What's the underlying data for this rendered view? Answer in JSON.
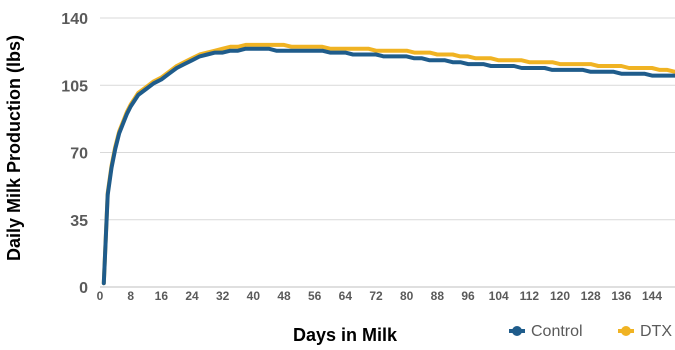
{
  "chart_data": {
    "type": "line",
    "title": "",
    "xlabel": "Days in Milk",
    "ylabel": "Daily Milk Production (lbs)",
    "xlim": [
      0,
      150
    ],
    "ylim": [
      0,
      140
    ],
    "x_ticks": [
      0,
      8,
      16,
      24,
      32,
      40,
      48,
      56,
      64,
      72,
      80,
      88,
      96,
      104,
      112,
      120,
      128,
      136,
      144
    ],
    "y_ticks": [
      0,
      35,
      70,
      105,
      140
    ],
    "grid": "horizontal",
    "legend_position": "bottom-right",
    "x": [
      1,
      2,
      3,
      4,
      5,
      6,
      7,
      8,
      9,
      10,
      12,
      14,
      16,
      18,
      20,
      22,
      24,
      26,
      28,
      30,
      32,
      34,
      36,
      38,
      40,
      42,
      44,
      46,
      48,
      50,
      52,
      54,
      56,
      58,
      60,
      62,
      64,
      66,
      68,
      70,
      72,
      74,
      76,
      78,
      80,
      82,
      84,
      86,
      88,
      90,
      92,
      94,
      96,
      98,
      100,
      102,
      104,
      106,
      108,
      110,
      112,
      114,
      116,
      118,
      120,
      122,
      124,
      126,
      128,
      130,
      132,
      134,
      136,
      138,
      140,
      142,
      144,
      146,
      148,
      150
    ],
    "series": [
      {
        "name": "Control",
        "color": "#1f5c8b",
        "values": [
          2,
          48,
          62,
          72,
          80,
          85,
          90,
          94,
          97,
          100,
          103,
          106,
          108,
          111,
          114,
          116,
          118,
          120,
          121,
          122,
          122,
          123,
          123,
          124,
          124,
          124,
          124,
          123,
          123,
          123,
          123,
          123,
          123,
          123,
          122,
          122,
          122,
          121,
          121,
          121,
          121,
          120,
          120,
          120,
          120,
          119,
          119,
          118,
          118,
          118,
          117,
          117,
          116,
          116,
          116,
          115,
          115,
          115,
          115,
          114,
          114,
          114,
          114,
          113,
          113,
          113,
          113,
          113,
          112,
          112,
          112,
          112,
          111,
          111,
          111,
          111,
          110,
          110,
          110,
          110
        ]
      },
      {
        "name": "DTX",
        "color": "#f0b323",
        "values": [
          2,
          49,
          63,
          73,
          81,
          86,
          91,
          95,
          98,
          101,
          104,
          107,
          109,
          112,
          115,
          117,
          119,
          121,
          122,
          123,
          124,
          125,
          125,
          126,
          126,
          126,
          126,
          126,
          126,
          125,
          125,
          125,
          125,
          125,
          124,
          124,
          124,
          124,
          124,
          124,
          123,
          123,
          123,
          123,
          123,
          122,
          122,
          122,
          121,
          121,
          121,
          120,
          120,
          119,
          119,
          119,
          118,
          118,
          118,
          118,
          117,
          117,
          117,
          117,
          116,
          116,
          116,
          116,
          116,
          115,
          115,
          115,
          115,
          114,
          114,
          114,
          114,
          113,
          113,
          112
        ]
      }
    ]
  }
}
